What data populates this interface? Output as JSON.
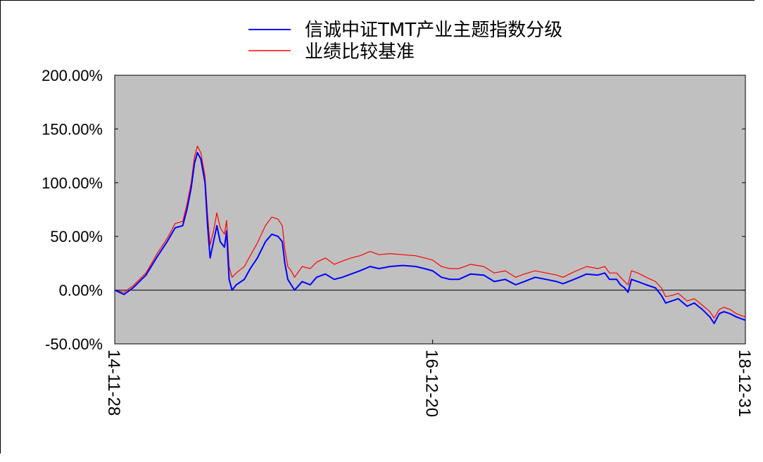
{
  "chart_data": {
    "type": "line",
    "title": "",
    "xlabel": "",
    "ylabel": "",
    "ylim": [
      -50,
      200
    ],
    "yticks": [
      "200.00%",
      "150.00%",
      "100.00%",
      "50.00%",
      "0.00%",
      "-50.00%"
    ],
    "ytick_values": [
      200,
      150,
      100,
      50,
      0,
      -50
    ],
    "xticks": [
      "14-11-28",
      "16-12-20",
      "18-12-31"
    ],
    "xtick_dates": [
      "2014-11-28",
      "2016-12-20",
      "2018-12-31"
    ],
    "x_range": [
      "2014-11-28",
      "2018-12-31"
    ],
    "grid": false,
    "legend_position": "top-center",
    "background_color": "#c0c0c0",
    "series": [
      {
        "name": "信诚中证TMT产业主题指数分级",
        "color": "#0000ff",
        "points": [
          [
            "2014-11-28",
            0
          ],
          [
            "2014-12-20",
            -4
          ],
          [
            "2015-01-10",
            2
          ],
          [
            "2015-02-10",
            14
          ],
          [
            "2015-03-10",
            32
          ],
          [
            "2015-04-01",
            45
          ],
          [
            "2015-04-20",
            58
          ],
          [
            "2015-05-08",
            60
          ],
          [
            "2015-05-18",
            75
          ],
          [
            "2015-05-28",
            95
          ],
          [
            "2015-06-05",
            118
          ],
          [
            "2015-06-12",
            128
          ],
          [
            "2015-06-20",
            122
          ],
          [
            "2015-06-30",
            100
          ],
          [
            "2015-07-06",
            60
          ],
          [
            "2015-07-12",
            30
          ],
          [
            "2015-07-20",
            45
          ],
          [
            "2015-07-28",
            60
          ],
          [
            "2015-08-05",
            45
          ],
          [
            "2015-08-15",
            40
          ],
          [
            "2015-08-20",
            55
          ],
          [
            "2015-08-26",
            10
          ],
          [
            "2015-09-02",
            0
          ],
          [
            "2015-09-12",
            5
          ],
          [
            "2015-10-01",
            10
          ],
          [
            "2015-10-15",
            20
          ],
          [
            "2015-11-01",
            30
          ],
          [
            "2015-11-20",
            45
          ],
          [
            "2015-12-05",
            52
          ],
          [
            "2015-12-20",
            50
          ],
          [
            "2015-12-30",
            45
          ],
          [
            "2016-01-05",
            25
          ],
          [
            "2016-01-12",
            10
          ],
          [
            "2016-01-20",
            5
          ],
          [
            "2016-01-28",
            0
          ],
          [
            "2016-02-15",
            8
          ],
          [
            "2016-03-05",
            5
          ],
          [
            "2016-03-20",
            12
          ],
          [
            "2016-04-10",
            15
          ],
          [
            "2016-05-01",
            10
          ],
          [
            "2016-05-20",
            12
          ],
          [
            "2016-06-10",
            15
          ],
          [
            "2016-07-01",
            18
          ],
          [
            "2016-07-25",
            22
          ],
          [
            "2016-08-15",
            20
          ],
          [
            "2016-09-10",
            22
          ],
          [
            "2016-10-10",
            23
          ],
          [
            "2016-11-10",
            22
          ],
          [
            "2016-12-01",
            20
          ],
          [
            "2016-12-20",
            18
          ],
          [
            "2017-01-10",
            12
          ],
          [
            "2017-01-30",
            10
          ],
          [
            "2017-02-20",
            10
          ],
          [
            "2017-03-20",
            15
          ],
          [
            "2017-04-20",
            14
          ],
          [
            "2017-05-15",
            8
          ],
          [
            "2017-06-10",
            10
          ],
          [
            "2017-07-05",
            5
          ],
          [
            "2017-07-25",
            8
          ],
          [
            "2017-08-20",
            12
          ],
          [
            "2017-09-15",
            10
          ],
          [
            "2017-10-10",
            8
          ],
          [
            "2017-10-25",
            6
          ],
          [
            "2017-11-20",
            10
          ],
          [
            "2017-12-20",
            15
          ],
          [
            "2018-01-15",
            14
          ],
          [
            "2018-02-01",
            16
          ],
          [
            "2018-02-12",
            10
          ],
          [
            "2018-03-01",
            10
          ],
          [
            "2018-03-10",
            5
          ],
          [
            "2018-03-20",
            2
          ],
          [
            "2018-03-28",
            -2
          ],
          [
            "2018-04-05",
            10
          ],
          [
            "2018-04-20",
            8
          ],
          [
            "2018-05-10",
            5
          ],
          [
            "2018-06-01",
            2
          ],
          [
            "2018-06-15",
            -5
          ],
          [
            "2018-06-25",
            -12
          ],
          [
            "2018-07-10",
            -10
          ],
          [
            "2018-07-25",
            -8
          ],
          [
            "2018-08-15",
            -15
          ],
          [
            "2018-09-01",
            -12
          ],
          [
            "2018-09-20",
            -18
          ],
          [
            "2018-10-08",
            -25
          ],
          [
            "2018-10-18",
            -31
          ],
          [
            "2018-10-30",
            -22
          ],
          [
            "2018-11-10",
            -20
          ],
          [
            "2018-11-25",
            -22
          ],
          [
            "2018-12-10",
            -25
          ],
          [
            "2018-12-31",
            -28
          ]
        ]
      },
      {
        "name": "业绩比较基准",
        "color": "#ff0000",
        "points": [
          [
            "2014-11-28",
            0
          ],
          [
            "2014-12-20",
            -2
          ],
          [
            "2015-01-10",
            4
          ],
          [
            "2015-02-10",
            16
          ],
          [
            "2015-03-10",
            35
          ],
          [
            "2015-04-01",
            48
          ],
          [
            "2015-04-20",
            62
          ],
          [
            "2015-05-08",
            64
          ],
          [
            "2015-05-18",
            80
          ],
          [
            "2015-05-28",
            100
          ],
          [
            "2015-06-05",
            124
          ],
          [
            "2015-06-12",
            134
          ],
          [
            "2015-06-20",
            128
          ],
          [
            "2015-06-30",
            106
          ],
          [
            "2015-07-06",
            70
          ],
          [
            "2015-07-12",
            42
          ],
          [
            "2015-07-20",
            55
          ],
          [
            "2015-07-28",
            72
          ],
          [
            "2015-08-05",
            58
          ],
          [
            "2015-08-15",
            52
          ],
          [
            "2015-08-20",
            65
          ],
          [
            "2015-08-26",
            22
          ],
          [
            "2015-09-02",
            12
          ],
          [
            "2015-09-12",
            16
          ],
          [
            "2015-10-01",
            22
          ],
          [
            "2015-10-15",
            32
          ],
          [
            "2015-11-01",
            44
          ],
          [
            "2015-11-20",
            60
          ],
          [
            "2015-12-05",
            68
          ],
          [
            "2015-12-20",
            66
          ],
          [
            "2015-12-30",
            60
          ],
          [
            "2016-01-05",
            38
          ],
          [
            "2016-01-12",
            22
          ],
          [
            "2016-01-20",
            18
          ],
          [
            "2016-01-28",
            12
          ],
          [
            "2016-02-15",
            22
          ],
          [
            "2016-03-05",
            20
          ],
          [
            "2016-03-20",
            26
          ],
          [
            "2016-04-10",
            30
          ],
          [
            "2016-05-01",
            24
          ],
          [
            "2016-05-20",
            27
          ],
          [
            "2016-06-10",
            30
          ],
          [
            "2016-07-01",
            32
          ],
          [
            "2016-07-25",
            36
          ],
          [
            "2016-08-15",
            33
          ],
          [
            "2016-09-10",
            34
          ],
          [
            "2016-10-10",
            33
          ],
          [
            "2016-11-10",
            32
          ],
          [
            "2016-12-01",
            30
          ],
          [
            "2016-12-20",
            28
          ],
          [
            "2017-01-10",
            22
          ],
          [
            "2017-01-30",
            20
          ],
          [
            "2017-02-20",
            20
          ],
          [
            "2017-03-20",
            24
          ],
          [
            "2017-04-20",
            22
          ],
          [
            "2017-05-15",
            16
          ],
          [
            "2017-06-10",
            18
          ],
          [
            "2017-07-05",
            12
          ],
          [
            "2017-07-25",
            15
          ],
          [
            "2017-08-20",
            18
          ],
          [
            "2017-09-15",
            16
          ],
          [
            "2017-10-10",
            14
          ],
          [
            "2017-10-25",
            12
          ],
          [
            "2017-11-20",
            17
          ],
          [
            "2017-12-20",
            22
          ],
          [
            "2018-01-15",
            20
          ],
          [
            "2018-02-01",
            22
          ],
          [
            "2018-02-12",
            16
          ],
          [
            "2018-03-01",
            16
          ],
          [
            "2018-03-10",
            12
          ],
          [
            "2018-03-20",
            8
          ],
          [
            "2018-03-28",
            5
          ],
          [
            "2018-04-05",
            18
          ],
          [
            "2018-04-20",
            16
          ],
          [
            "2018-05-10",
            12
          ],
          [
            "2018-06-01",
            8
          ],
          [
            "2018-06-15",
            2
          ],
          [
            "2018-06-25",
            -6
          ],
          [
            "2018-07-10",
            -5
          ],
          [
            "2018-07-25",
            -3
          ],
          [
            "2018-08-15",
            -10
          ],
          [
            "2018-09-01",
            -8
          ],
          [
            "2018-09-20",
            -14
          ],
          [
            "2018-10-08",
            -20
          ],
          [
            "2018-10-18",
            -26
          ],
          [
            "2018-10-30",
            -18
          ],
          [
            "2018-11-10",
            -16
          ],
          [
            "2018-11-25",
            -18
          ],
          [
            "2018-12-10",
            -22
          ],
          [
            "2018-12-31",
            -25
          ]
        ]
      }
    ]
  }
}
